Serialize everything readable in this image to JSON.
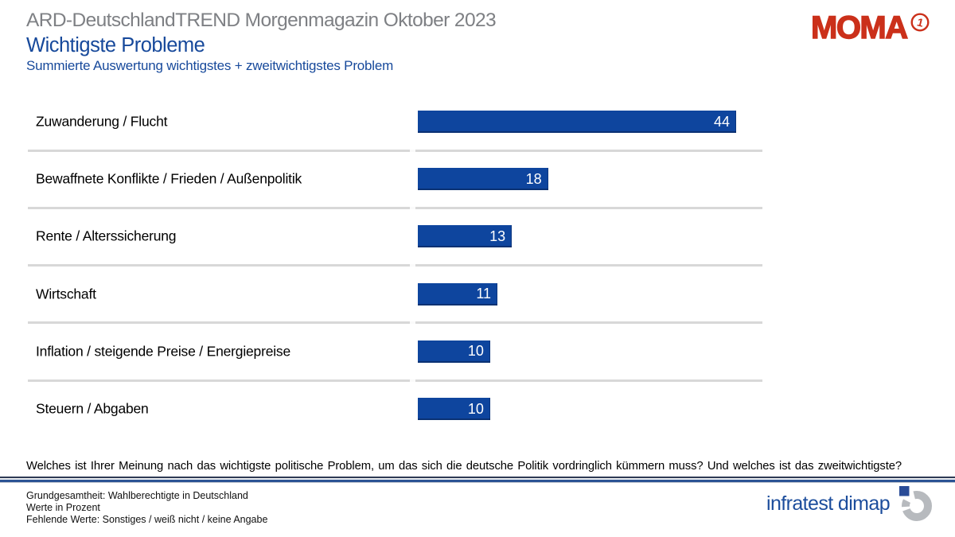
{
  "header": {
    "kicker": "ARD-DeutschlandTREND Morgenmagazin Oktober 2023",
    "title": "Wichtigste Probleme",
    "subtitle": "Summierte Auswertung wichtigstes + zweitwichtigstes Problem"
  },
  "branding": {
    "moma_wordmark": "MOMA",
    "ard_one_glyph": "1"
  },
  "chart_data": {
    "type": "bar",
    "orientation": "horizontal",
    "title": "Wichtigste Probleme",
    "subtitle": "Summierte Auswertung wichtigstes + zweitwichtigstes Problem",
    "unit": "percent",
    "categories": [
      "Zuwanderung / Flucht",
      "Bewaffnete Konflikte / Frieden / Außenpolitik",
      "Rente / Alterssicherung",
      "Wirtschaft",
      "Inflation / steigende Preise / Energiepreise",
      "Steuern / Abgaben"
    ],
    "values": [
      44,
      18,
      13,
      11,
      10,
      10
    ],
    "xlim": [
      0,
      44
    ],
    "grid": false,
    "legend": false,
    "bar_color": "#0E459E",
    "value_label_color": "#FFFFFF"
  },
  "question": "Welches ist Ihrer Meinung nach das wichtigste politische Problem, um das sich die deutsche Politik vordringlich kümmern muss? Und welches ist das zweitwichtigste?",
  "footnotes": [
    "Grundgesamtheit: Wahlberechtigte in Deutschland",
    "Werte in Prozent",
    "Fehlende Werte: Sonstiges / weiß nicht / keine Angabe"
  ],
  "source": {
    "label": "infratest dimap"
  },
  "colors": {
    "accent_blue": "#17499B",
    "bar_blue": "#0E459E",
    "kicker_gray": "#7E8084",
    "moma_red": "#CB301A",
    "infratest_blue": "#1C4D9C",
    "separator_gray": "#D8D8D8"
  }
}
